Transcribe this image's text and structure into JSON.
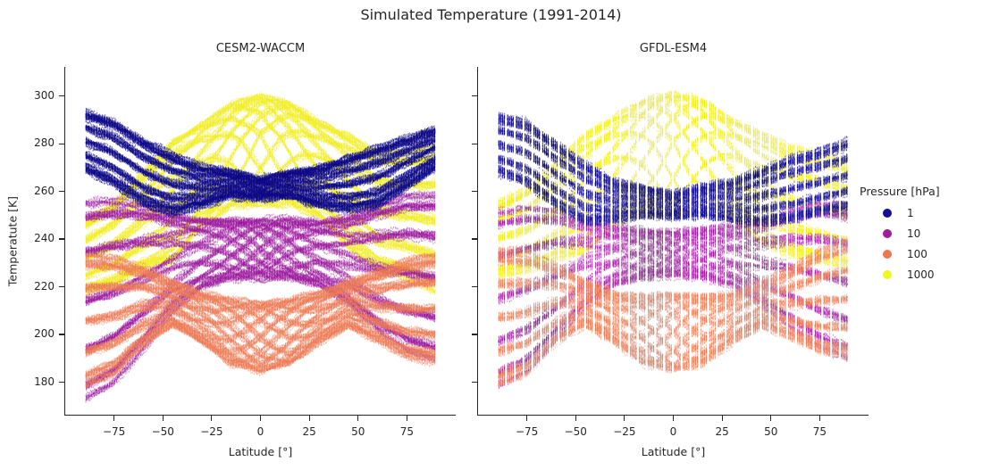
{
  "chart_data": {
    "type": "scatter",
    "title": "Simulated Temperature (1991-2014)",
    "xlabel": "Latitude [°]",
    "ylabel": "Temperatute [K]",
    "xlim": [
      -100,
      100
    ],
    "ylim": [
      166,
      312.2
    ],
    "grid": false,
    "xticks": [
      -75,
      -50,
      -25,
      0,
      25,
      50,
      75
    ],
    "xtick_labels": [
      "−75",
      "−50",
      "−25",
      "0",
      "25",
      "50",
      "75"
    ],
    "yticks": [
      180,
      200,
      220,
      240,
      260,
      280,
      300
    ],
    "ytick_labels": [
      "180",
      "200",
      "220",
      "240",
      "260",
      "280",
      "300"
    ],
    "legend": {
      "title": "Pressure [hPa]",
      "position": "right",
      "entries": [
        {
          "label": "1",
          "color": "#140d96"
        },
        {
          "label": "10",
          "color": "#a21c9a"
        },
        {
          "label": "100",
          "color": "#ed7953"
        },
        {
          "label": "1000",
          "color": "#eff821"
        }
      ]
    },
    "curves_per_series": {
      "n_months": 12,
      "n_years": 12
    },
    "profile_lats": [
      -90,
      -75,
      -60,
      -45,
      -30,
      -15,
      0,
      15,
      30,
      45,
      60,
      75,
      90
    ],
    "panels": [
      {
        "title": "CESM2-WACCM",
        "lat_step": 0.7,
        "stripe_skip": 0,
        "series": [
          {
            "pressure_hPa": 1,
            "color": "#0d0887",
            "alpha": 0.6,
            "phase_width": 18,
            "skew": 0,
            "jitter": 0.9,
            "mean": [
              281,
              276,
              268,
              263,
              262,
              263,
              261,
              263,
              262,
              263,
              266,
              272,
              278
            ],
            "amp": [
              12,
              13,
              13,
              12,
              8,
              5,
              4,
              5,
              8,
              11,
              12,
              10,
              8
            ]
          },
          {
            "pressure_hPa": 10,
            "color": "#9c179e",
            "alpha": 0.5,
            "phase_width": 26,
            "skew": 0,
            "jitter": 1.0,
            "mean": [
              214,
              218,
              224,
              230,
              234,
              236,
              236,
              236,
              234,
              231,
              228,
              226,
              224
            ],
            "amp": [
              41,
              38,
              30,
              20,
              14,
              12,
              12,
              12,
              13,
              18,
              26,
              32,
              34
            ]
          },
          {
            "pressure_hPa": 100,
            "color": "#ed7953",
            "alpha": 0.5,
            "phase_width": 30,
            "skew": 0,
            "jitter": 1.0,
            "mean": [
              206,
              208,
              212,
              213,
              207,
              201,
              199,
              201,
              207,
              213,
              212,
              211,
              211
            ],
            "amp": [
              27,
              24,
              16,
              9,
              10,
              13,
              14,
              13,
              10,
              9,
              14,
              20,
              22
            ]
          },
          {
            "pressure_hPa": 1000,
            "color": "#f0ed20",
            "alpha": 0.55,
            "phase_width": 30,
            "skew": 0.8,
            "jitter": 0.9,
            "mean": [
              232,
              238,
              248,
              257,
              270,
              280,
              284,
              281,
              272,
              261,
              252,
              250,
              248
            ],
            "amp": [
              15,
              17,
              20,
              24,
              18,
              16,
              16,
              16,
              17,
              22,
              24,
              26,
              30
            ]
          }
        ]
      },
      {
        "title": "GFDL-ESM4",
        "lat_step": 0.9,
        "stripe_skip": 5,
        "series": [
          {
            "pressure_hPa": 1,
            "color": "#0d0887",
            "alpha": 0.6,
            "phase_width": 18,
            "skew": 0,
            "jitter": 0.8,
            "mean": [
              280,
              276,
              267,
              259,
              256,
              256,
              254,
              256,
              256,
              258,
              261,
              264,
              267
            ],
            "amp": [
              12,
              13,
              13,
              12,
              8,
              6,
              5,
              6,
              8,
              11,
              13,
              13,
              14
            ]
          },
          {
            "pressure_hPa": 10,
            "color": "#9c179e",
            "alpha": 0.5,
            "phase_width": 26,
            "skew": 0,
            "jitter": 1.0,
            "mean": [
              215,
              219,
              225,
              230,
              233,
              234,
              234,
              234,
              233,
              230,
              228,
              225,
              222
            ],
            "amp": [
              36,
              34,
              27,
              18,
              12,
              10,
              9,
              10,
              12,
              17,
              24,
              30,
              32
            ]
          },
          {
            "pressure_hPa": 100,
            "color": "#ed7953",
            "alpha": 0.5,
            "phase_width": 30,
            "skew": 0,
            "jitter": 0.9,
            "mean": [
              207,
              209,
              213,
              213,
              207,
              202,
              201,
              202,
              207,
              213,
              213,
              214,
              215
            ],
            "amp": [
              28,
              25,
              16,
              9,
              10,
              14,
              16,
              14,
              10,
              9,
              14,
              21,
              24
            ]
          },
          {
            "pressure_hPa": 1000,
            "color": "#f0ed20",
            "alpha": 0.55,
            "phase_width": 30,
            "skew": 0.55,
            "jitter": 0.6,
            "mean": [
              240,
              244,
              252,
              260,
              271,
              279,
              281,
              279,
              272,
              262,
              256,
              253,
              250
            ],
            "amp": [
              15,
              17,
              20,
              24,
              20,
              19,
              20,
              19,
              18,
              22,
              22,
              22,
              22
            ]
          }
        ]
      }
    ]
  }
}
